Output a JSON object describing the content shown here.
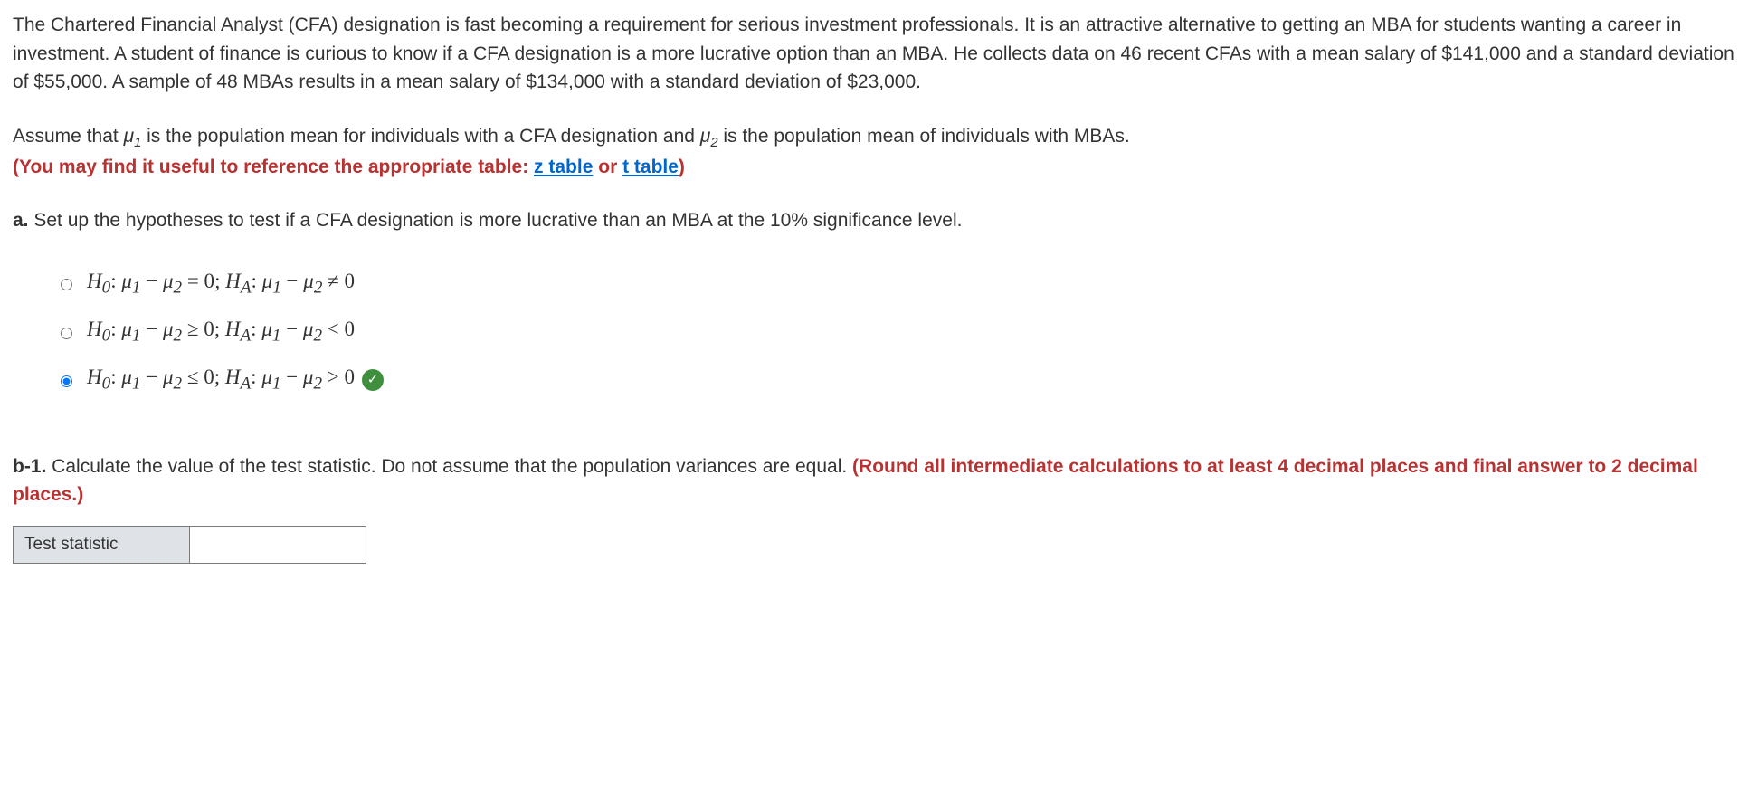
{
  "intro": {
    "paragraph1": "The Chartered Financial Analyst (CFA) designation is fast becoming a requirement for serious investment professionals. It is an attractive alternative to getting an MBA for students wanting a career in investment. A student of finance is curious to know if a CFA designation is a more lucrative option than an MBA. He collects data on 46 recent CFAs with a mean salary of $141,000 and a standard deviation of $55,000. A sample of 48 MBAs results in a mean salary of $134,000 with a standard deviation of $23,000.",
    "paragraph2_prefix": "Assume that ",
    "mu1": "μ",
    "mu1_sub": "1",
    "paragraph2_mid": " is the population mean for individuals with a CFA designation and ",
    "mu2": "μ",
    "mu2_sub": "2",
    "paragraph2_suffix": " is the population mean of individuals with MBAs.",
    "hint_prefix": "(You may find it useful to reference the appropriate table: ",
    "z_table": "z table",
    "hint_or": " or ",
    "t_table": "t table",
    "hint_suffix": ")"
  },
  "partA": {
    "label": "a.",
    "text": " Set up the hypotheses to test if a CFA designation is more lucrative than an MBA at the 10% significance level.",
    "options": [
      {
        "h0": "H",
        "h0sub": "0",
        "hA": "H",
        "hAsub": "A",
        "rel_h0": "= 0",
        "rel_ha": "≠ 0",
        "selected": false,
        "correct": false
      },
      {
        "h0": "H",
        "h0sub": "0",
        "hA": "H",
        "hAsub": "A",
        "rel_h0": "≥ 0",
        "rel_ha": "< 0",
        "selected": false,
        "correct": false
      },
      {
        "h0": "H",
        "h0sub": "0",
        "hA": "H",
        "hAsub": "A",
        "rel_h0": "≤ 0",
        "rel_ha": "> 0",
        "selected": true,
        "correct": true
      }
    ]
  },
  "partB1": {
    "label": "b-1.",
    "text": " Calculate the value of the test statistic. Do not assume that the population variances are equal. ",
    "hint": "(Round all intermediate calculations to at least 4 decimal places and final answer to 2 decimal places.)",
    "table_label": "Test statistic",
    "table_value": ""
  },
  "check_glyph": "✓"
}
